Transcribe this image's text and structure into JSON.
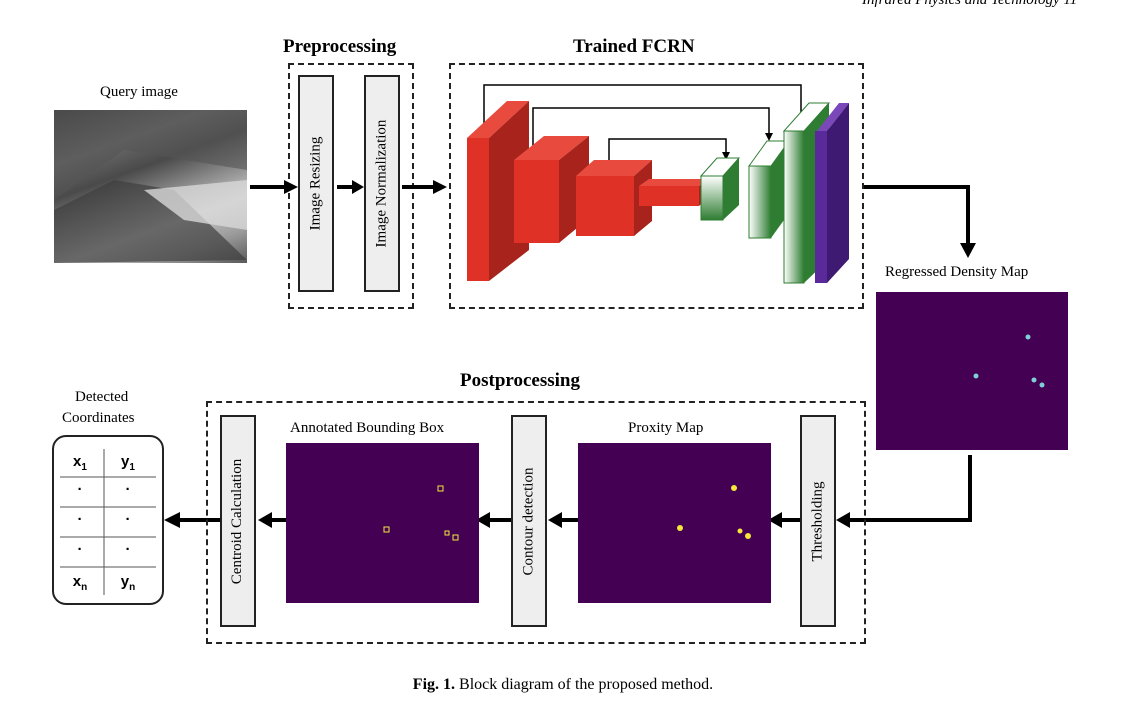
{
  "header": {
    "journal_fragment": "Infrared Physics and Technology 11"
  },
  "query": {
    "label": "Query image"
  },
  "preprocessing": {
    "title": "Preprocessing",
    "steps": [
      "Image Resizing",
      "Image Normalization"
    ]
  },
  "fcrn": {
    "title": "Trained FCRN"
  },
  "density": {
    "label": "Regressed Density Map"
  },
  "postprocessing": {
    "title": "Postprocessing",
    "thresholding": "Thresholding",
    "proxity_label": "Proxity Map",
    "contour": "Contour detection",
    "bbox_label": "Annotated Bounding Box",
    "centroid": "Centroid Calculation"
  },
  "output": {
    "label_line1": "Detected",
    "label_line2": "Coordinates",
    "rows": [
      [
        "x",
        "1",
        "y",
        "1"
      ],
      [
        "·",
        "",
        "·",
        ""
      ],
      [
        "·",
        "",
        "·",
        ""
      ],
      [
        "·",
        "",
        "·",
        ""
      ],
      [
        "x",
        "n",
        "y",
        "n"
      ]
    ]
  },
  "caption": {
    "fig": "Fig. 1.",
    "text": "Block diagram of the proposed method."
  },
  "colors": {
    "map_bg": "#440154",
    "encoder_red": "#e03127",
    "decoder_green": "#2e7d32",
    "output_purple": "#5b2a9a",
    "point_yellow": "#f5e83a",
    "point_cyan": "#7fd0d6"
  }
}
